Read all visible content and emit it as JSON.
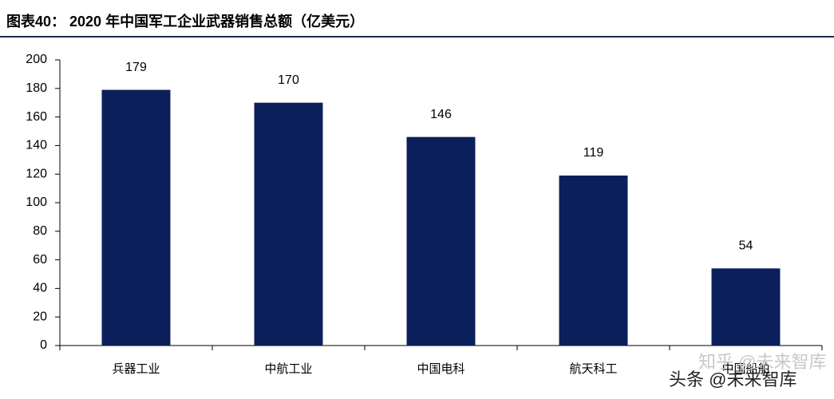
{
  "chart_data": {
    "type": "bar",
    "title": "图表40：  2020 年中国军工企业武器销售总额（亿美元）",
    "categories": [
      "兵器工业",
      "中航工业",
      "中国电科",
      "航天科工",
      "中国船舶"
    ],
    "values": [
      179,
      170,
      146,
      119,
      54
    ],
    "color": "#0b1f5a",
    "ylim": [
      0,
      200
    ],
    "yticks": [
      0,
      20,
      40,
      60,
      80,
      100,
      120,
      140,
      160,
      180,
      200
    ],
    "watermarks": [
      "知乎 @未来智库",
      "头条 @未来智库"
    ]
  }
}
